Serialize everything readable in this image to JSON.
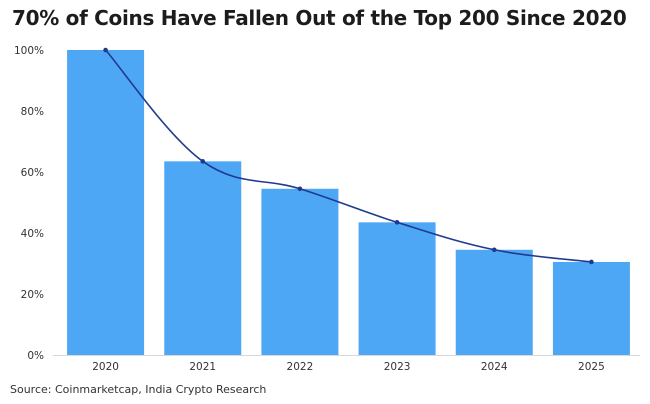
{
  "chart_data": {
    "type": "bar",
    "title": "70% of Coins Have Fallen Out of the Top 200 Since 2020",
    "categories": [
      "2020",
      "2021",
      "2022",
      "2023",
      "2024",
      "2025"
    ],
    "series": [
      {
        "type": "bar",
        "values": [
          100,
          63.5,
          54.5,
          43.5,
          34.5,
          30.5
        ]
      },
      {
        "type": "line",
        "values": [
          100,
          63.5,
          54.5,
          43.5,
          34.5,
          30.5
        ]
      }
    ],
    "ylim": [
      0,
      100
    ],
    "yticks": [
      "0%",
      "20%",
      "40%",
      "60%",
      "80%",
      "100%"
    ],
    "xlabel": "",
    "ylabel": "",
    "grid": false,
    "legend": "none",
    "source": "Source: Coinmarketcap, India Crypto Research",
    "colors": {
      "bar": "#4ea7f4",
      "line": "#1f3a8f"
    }
  }
}
